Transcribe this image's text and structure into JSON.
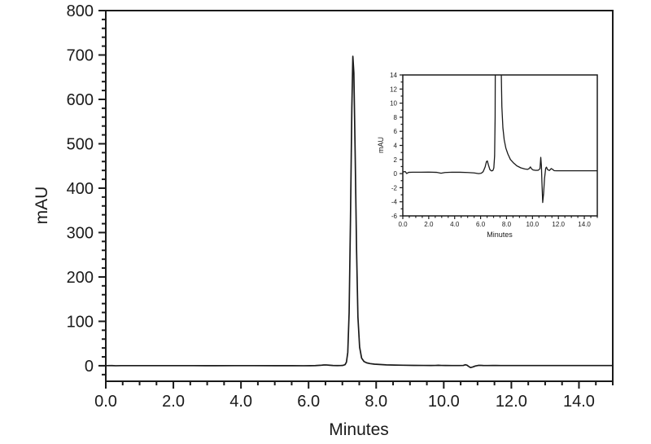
{
  "figure": {
    "background": "#ffffff",
    "line_color": "#1a1a1a",
    "description": "HPLC chromatogram with zoomed baseline inset"
  },
  "chart_data": [
    {
      "id": "main",
      "type": "line",
      "title": "",
      "xlabel": "Minutes",
      "ylabel": "mAU",
      "xlim": [
        0,
        15
      ],
      "ylim": [
        -35,
        800
      ],
      "grid": false,
      "legend": false,
      "x_tick_values": [
        0,
        2,
        4,
        6,
        8,
        10,
        12,
        14
      ],
      "x_tick_labels": [
        "0.0",
        "2.0",
        "4.0",
        "6.0",
        "8.0",
        "10.0",
        "12.0",
        "14.0"
      ],
      "x_minor_step": 0.5,
      "y_tick_values": [
        0,
        100,
        200,
        300,
        400,
        500,
        600,
        700,
        800
      ],
      "y_tick_labels": [
        "0",
        "100",
        "200",
        "300",
        "400",
        "500",
        "600",
        "700",
        "800"
      ],
      "y_minor_step": 20,
      "series": [
        {
          "name": "UV absorbance signal",
          "points_ref": "trace_points"
        }
      ]
    },
    {
      "id": "inset",
      "type": "line",
      "title": "",
      "xlabel": "Minutes",
      "ylabel": "mAU",
      "xlim": [
        0,
        15
      ],
      "ylim": [
        -6,
        14
      ],
      "grid": false,
      "legend": false,
      "x_tick_values": [
        0,
        2,
        4,
        6,
        8,
        10,
        12,
        14
      ],
      "x_tick_labels": [
        "0.0",
        "2.0",
        "4.0",
        "6.0",
        "8.0",
        "10.0",
        "12.0",
        "14.0"
      ],
      "x_minor_step": 0.5,
      "y_tick_values": [
        -6,
        -4,
        -2,
        0,
        2,
        4,
        6,
        8,
        10,
        12,
        14
      ],
      "y_tick_labels": [
        "-6",
        "-4",
        "-2",
        "0",
        "2",
        "4",
        "6",
        "8",
        "10",
        "12",
        "14"
      ],
      "y_minor_step": 1,
      "series": [
        {
          "name": "UV absorbance signal (zoomed baseline)",
          "points_ref": "trace_points"
        }
      ]
    }
  ],
  "trace_points": [
    [
      0.0,
      0.22
    ],
    [
      0.18,
      0.3
    ],
    [
      0.3,
      0.02
    ],
    [
      0.45,
      0.18
    ],
    [
      0.8,
      0.2
    ],
    [
      1.4,
      0.2
    ],
    [
      2.0,
      0.21
    ],
    [
      2.6,
      0.18
    ],
    [
      2.95,
      0.06
    ],
    [
      3.25,
      0.16
    ],
    [
      3.8,
      0.2
    ],
    [
      4.4,
      0.19
    ],
    [
      5.0,
      0.16
    ],
    [
      5.5,
      0.1
    ],
    [
      5.85,
      0.0
    ],
    [
      6.05,
      0.06
    ],
    [
      6.2,
      0.28
    ],
    [
      6.35,
      0.95
    ],
    [
      6.45,
      1.7
    ],
    [
      6.52,
      1.8
    ],
    [
      6.6,
      1.25
    ],
    [
      6.72,
      0.55
    ],
    [
      6.85,
      0.38
    ],
    [
      6.95,
      0.45
    ],
    [
      7.02,
      0.8
    ],
    [
      7.08,
      2.5
    ],
    [
      7.12,
      8
    ],
    [
      7.16,
      30
    ],
    [
      7.2,
      120
    ],
    [
      7.24,
      330
    ],
    [
      7.28,
      580
    ],
    [
      7.31,
      697
    ],
    [
      7.34,
      660
    ],
    [
      7.38,
      470
    ],
    [
      7.42,
      260
    ],
    [
      7.46,
      110
    ],
    [
      7.51,
      42
    ],
    [
      7.57,
      17
    ],
    [
      7.64,
      9.5
    ],
    [
      7.72,
      6.5
    ],
    [
      7.82,
      4.8
    ],
    [
      7.95,
      3.6
    ],
    [
      8.1,
      2.8
    ],
    [
      8.3,
      2.0
    ],
    [
      8.55,
      1.5
    ],
    [
      8.8,
      1.1
    ],
    [
      9.1,
      0.82
    ],
    [
      9.4,
      0.66
    ],
    [
      9.62,
      0.6
    ],
    [
      9.75,
      0.72
    ],
    [
      9.84,
      0.95
    ],
    [
      9.93,
      0.68
    ],
    [
      10.05,
      0.52
    ],
    [
      10.25,
      0.46
    ],
    [
      10.45,
      0.48
    ],
    [
      10.58,
      0.7
    ],
    [
      10.64,
      2.3
    ],
    [
      10.69,
      1.1
    ],
    [
      10.73,
      -1.2
    ],
    [
      10.79,
      -4.1
    ],
    [
      10.86,
      -2.8
    ],
    [
      10.93,
      -0.7
    ],
    [
      11.02,
      0.75
    ],
    [
      11.08,
      0.92
    ],
    [
      11.16,
      0.58
    ],
    [
      11.3,
      0.44
    ],
    [
      11.45,
      0.72
    ],
    [
      11.55,
      0.6
    ],
    [
      11.68,
      0.42
    ],
    [
      11.9,
      0.4
    ],
    [
      12.4,
      0.4
    ],
    [
      13.2,
      0.4
    ],
    [
      14.0,
      0.4
    ],
    [
      15.0,
      0.4
    ]
  ]
}
